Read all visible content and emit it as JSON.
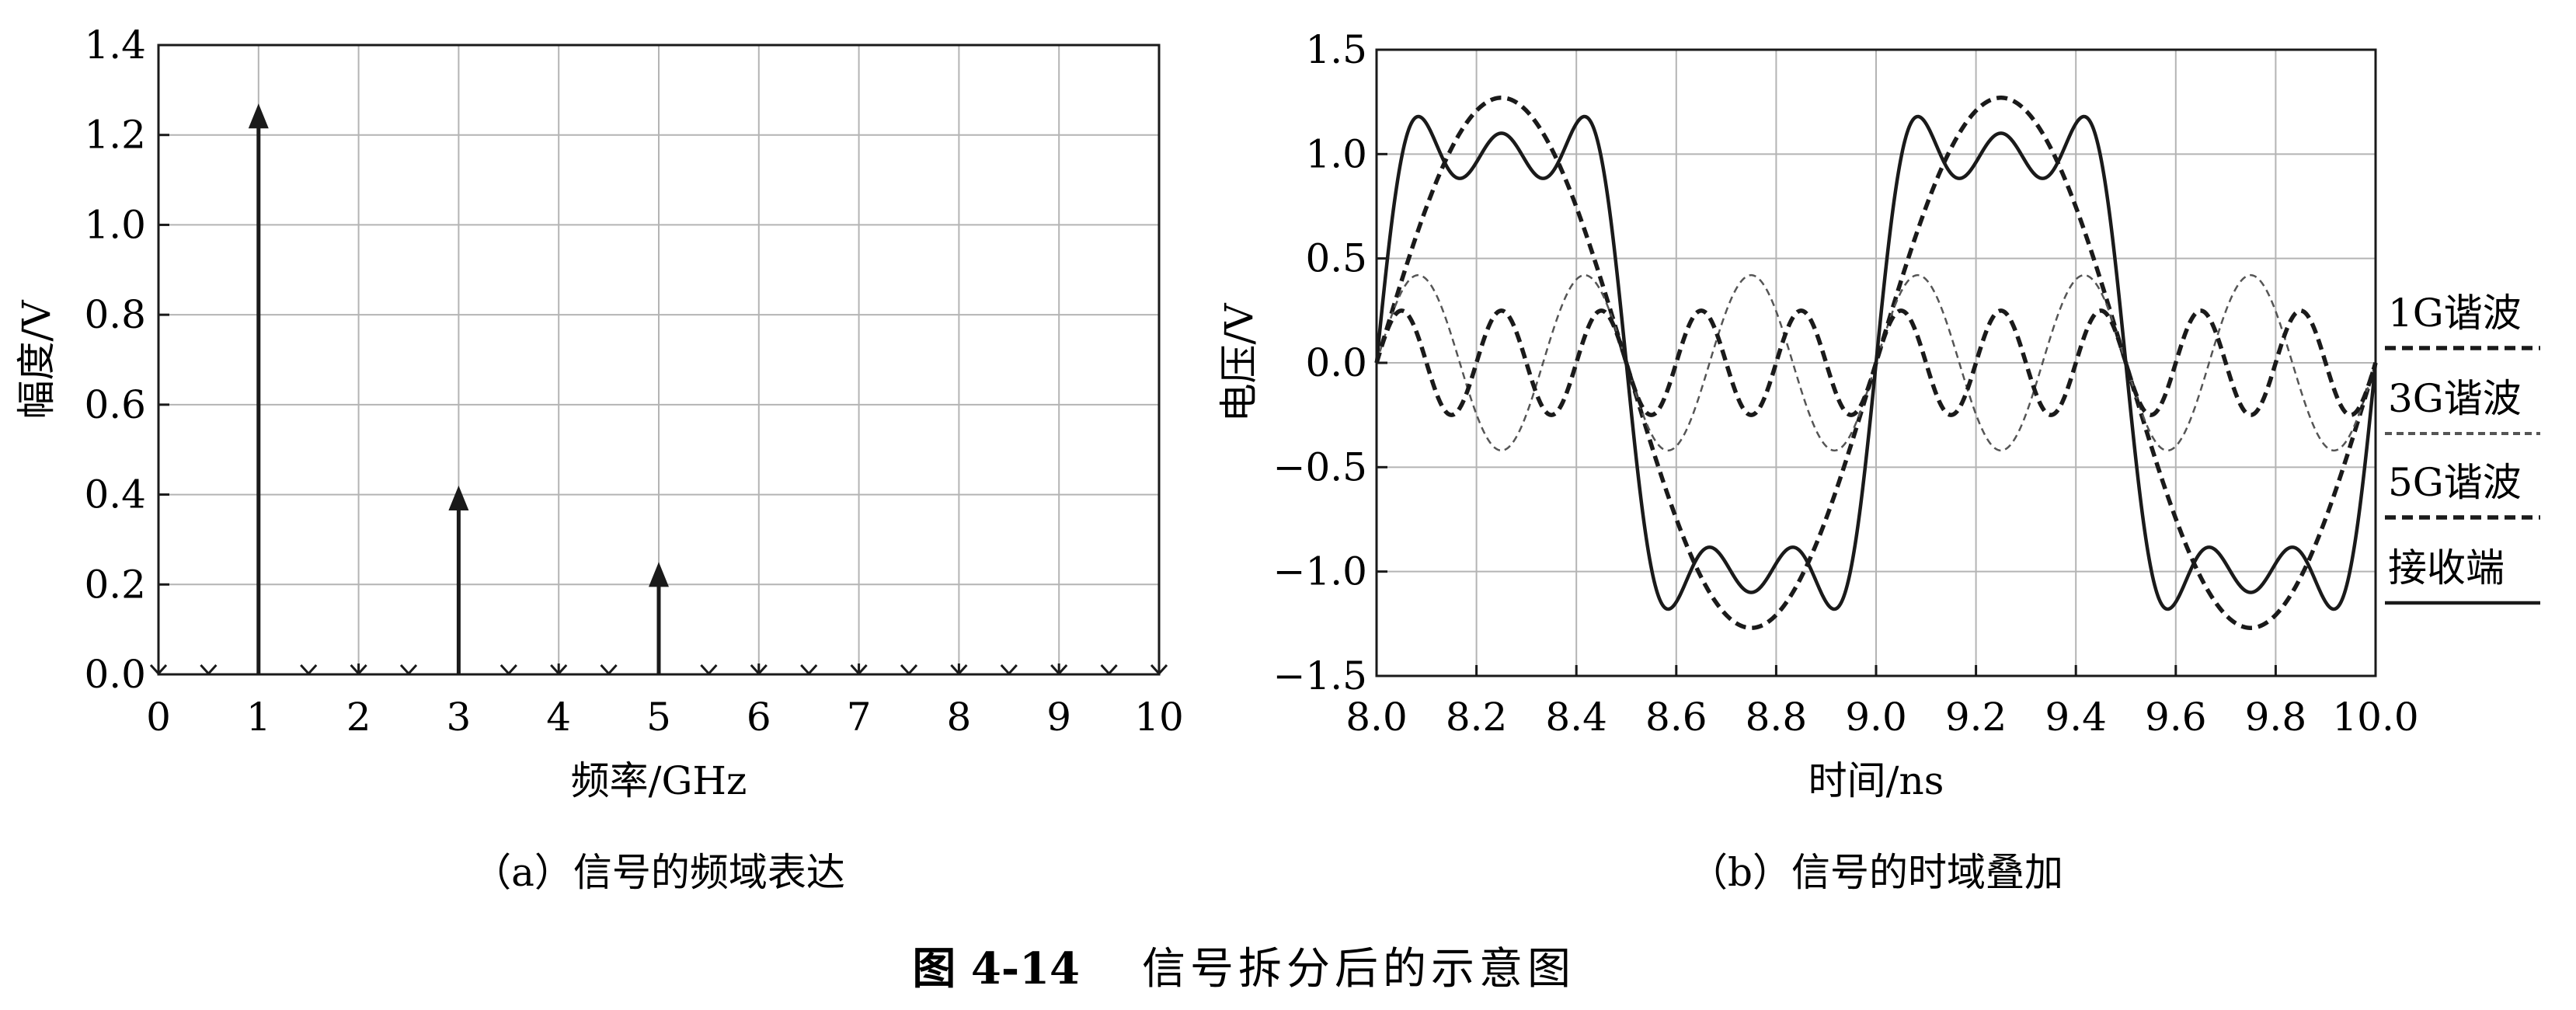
{
  "figure": {
    "caption_number": "图 4-14",
    "caption_text": "信号拆分后的示意图"
  },
  "chart_data": [
    {
      "type": "stem",
      "subcaption": "（a）信号的频域表达",
      "xlabel": "频率/GHz",
      "ylabel": "幅度/V",
      "xlim": [
        0,
        10
      ],
      "ylim": [
        0,
        1.4
      ],
      "xticks": [
        "0",
        "1",
        "2",
        "3",
        "4",
        "5",
        "6",
        "7",
        "8",
        "9",
        "10"
      ],
      "yticks": [
        "0.0",
        "0.2",
        "0.4",
        "0.6",
        "0.8",
        "1.0",
        "1.2",
        "1.4"
      ],
      "grid": true,
      "x": [
        0,
        0.5,
        1,
        1.5,
        2,
        2.5,
        3,
        3.5,
        4,
        4.5,
        5,
        5.5,
        6,
        6.5,
        7,
        7.5,
        8,
        8.5,
        9,
        9.5,
        10
      ],
      "y": [
        0,
        0,
        1.27,
        0,
        0,
        0,
        0.42,
        0,
        0,
        0,
        0.25,
        0,
        0,
        0,
        0,
        0,
        0,
        0,
        0,
        0,
        0
      ]
    },
    {
      "type": "line",
      "subcaption": "（b）信号的时域叠加",
      "xlabel": "时间/ns",
      "ylabel": "电压/V",
      "xlim": [
        8.0,
        10.0
      ],
      "ylim": [
        -1.5,
        1.5
      ],
      "xticks": [
        "8.0",
        "8.2",
        "8.4",
        "8.6",
        "8.8",
        "9.0",
        "9.2",
        "9.4",
        "9.6",
        "9.8",
        "10.0"
      ],
      "yticks": [
        "1.5",
        "1.0",
        "0.5",
        "0.0",
        "−0.5",
        "−1.0",
        "−1.5"
      ],
      "grid": true,
      "legend_position": "right",
      "series": [
        {
          "name": "1G谐波",
          "amplitude": 1.27,
          "frequency_ghz": 1,
          "style": "dashed-bold"
        },
        {
          "name": "3G谐波",
          "amplitude": 0.42,
          "frequency_ghz": 3,
          "style": "dashed-thin"
        },
        {
          "name": "5G谐波",
          "amplitude": 0.25,
          "frequency_ghz": 5,
          "style": "dashed-bold"
        },
        {
          "name": "接收端",
          "components": "sum",
          "style": "solid"
        }
      ]
    }
  ]
}
